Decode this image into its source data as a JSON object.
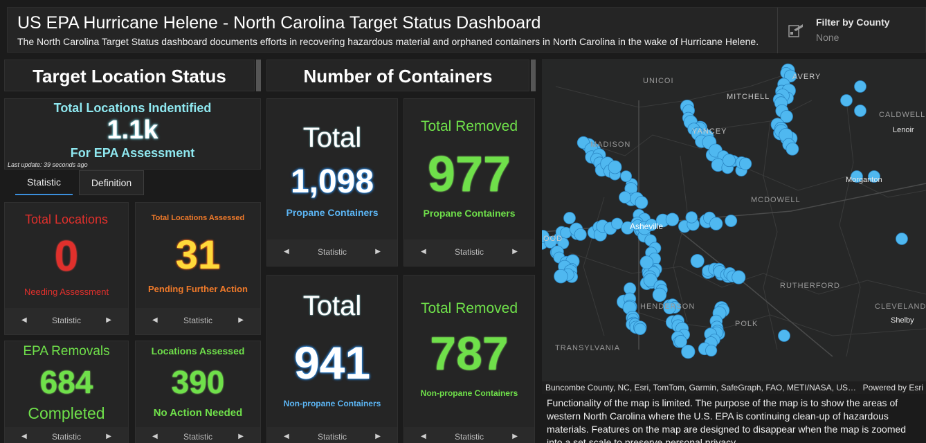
{
  "header": {
    "title": "US EPA Hurricane Helene - North Carolina Target Status Dashboard",
    "subtitle": "The North Carolina Target Status dashboard documents efforts in recovering hazardous material and orphaned containers in North Carolina in the wake of Hurricane Helene."
  },
  "filter": {
    "label": "Filter by County",
    "value": "None"
  },
  "sections": {
    "target_status": "Target Location Status",
    "containers": "Number of Containers"
  },
  "total_locations": {
    "top": "Total Locations Indentified",
    "value": "1.1k",
    "bottom": "For EPA Assessment",
    "last_update": "Last update: 39 seconds ago"
  },
  "tabs": {
    "statistic": "Statistic",
    "definition": "Definition"
  },
  "cards": {
    "needing": {
      "top": "Total Locations",
      "value": "0",
      "bottom": "Needing Assessment",
      "nav": "Statistic"
    },
    "pending": {
      "top": "Total Locations Assessed",
      "value": "31",
      "bottom": "Pending Further Action",
      "nav": "Statistic"
    },
    "removals": {
      "top": "EPA Removals",
      "value": "684",
      "bottom": "Completed",
      "nav": "Statistic"
    },
    "assessed": {
      "top": "Locations Assessed",
      "value": "390",
      "bottom": "No Action Needed",
      "nav": "Statistic"
    },
    "propane_total": {
      "top": "Total",
      "value": "1,098",
      "bottom": "Propane Containers",
      "nav": "Statistic"
    },
    "propane_removed": {
      "top": "Total Removed",
      "value": "977",
      "bottom": "Propane Containers",
      "nav": "Statistic"
    },
    "nonpropane_total": {
      "top": "Total",
      "value": "941",
      "bottom": "Non-propane Containers",
      "nav": "Statistic"
    },
    "nonpropane_removed": {
      "top": "Total Removed",
      "value": "787",
      "bottom": "Non-propane Containers",
      "nav": "Statistic"
    }
  },
  "map": {
    "counties": [
      "UNICOI",
      "AVERY",
      "MITCHELL",
      "CALDWELL",
      "YANCEY",
      "MADISON",
      "MCDOWELL",
      "RUTHERFORD",
      "HENDERSON",
      "POLK",
      "CLEVELAND",
      "TRANSYLVANIA"
    ],
    "cities": [
      "Lenoir",
      "Morganton",
      "Asheville",
      "Shelby"
    ],
    "edge_label": "OOD",
    "attribution": "Buncombe County, NC, Esri, TomTom, Garmin, SafeGraph, FAO, METI/NASA, US…",
    "powered_by": "Powered by Esri",
    "note": "Functionality of the map is limited.  The purpose of the map is to show the areas of western North Carolina where the U.S. EPA is continuing clean-up of hazardous materials.  Features on the map are designed to disappear when the map is zoomed into a set scale to preserve personal privacy.",
    "marker_color": "#4fb8f0"
  },
  "colors": {
    "red": "#e0302c",
    "orange": "#f07a2a",
    "green": "#6fe04a",
    "blue": "#5cb6f5",
    "cyan": "#8fe8f0"
  }
}
